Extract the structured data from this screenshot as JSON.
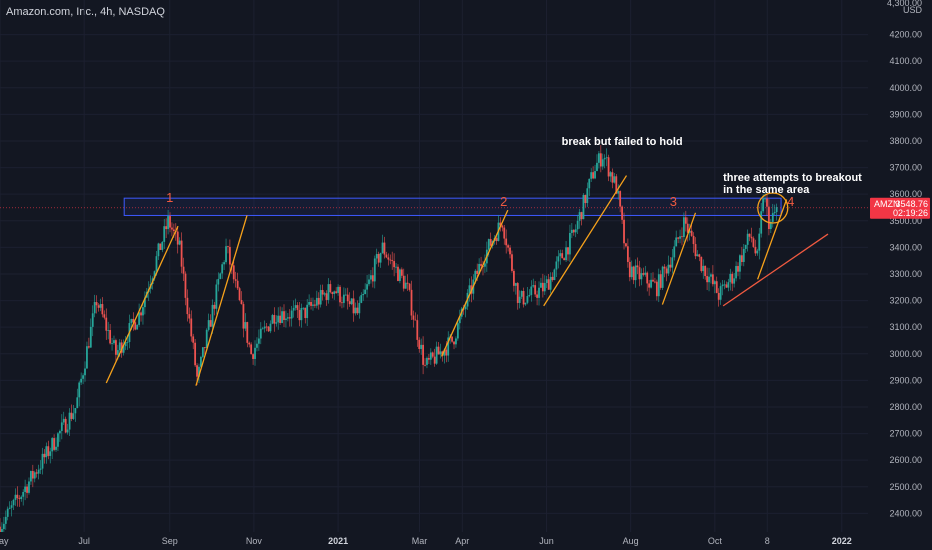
{
  "header": {
    "symbol": "Amazon.com, Inc., 4h, NASDAQ"
  },
  "price_scale": {
    "currency": "USD",
    "top_label": "4,300.00"
  },
  "price_tag": {
    "ticker": "AMZN",
    "price": "3548.76",
    "countdown": "02:19:26",
    "color": "#f23645"
  },
  "colors": {
    "background": "#131722",
    "up": "#26a69a",
    "down": "#ef5350",
    "trendline": "#f7a21b",
    "support": "#f05a40",
    "box": "#3d5afe"
  },
  "chart_data": {
    "type": "candlestick",
    "title": "Amazon.com, Inc., 4h, NASDAQ",
    "ylim": [
      2330,
      4330
    ],
    "y_ticks": [
      2400,
      2500,
      2600,
      2700,
      2800,
      2900,
      3000,
      3100,
      3200,
      3300,
      3400,
      3500,
      3600,
      3700,
      3800,
      3900,
      4000,
      4100,
      4200
    ],
    "y_tick_labels": [
      "2400.00",
      "2500.00",
      "2600.00",
      "2700.00",
      "2800.00",
      "2900.00",
      "3000.00",
      "3100.00",
      "3200.00",
      "3300.00",
      "3400.00",
      "3500.00",
      "3600.00",
      "3700.00",
      "3800.00",
      "3900.00",
      "4000.00",
      "4100.00",
      "4200.00"
    ],
    "x_domain": [
      "2020-05-01",
      "2022-01-20"
    ],
    "x_ticks": [
      {
        "date": "2020-05-01",
        "label": "May",
        "bold": false
      },
      {
        "date": "2020-07-01",
        "label": "Jul",
        "bold": false
      },
      {
        "date": "2020-09-01",
        "label": "Sep",
        "bold": false
      },
      {
        "date": "2020-11-01",
        "label": "Nov",
        "bold": false
      },
      {
        "date": "2021-01-01",
        "label": "2021",
        "bold": true
      },
      {
        "date": "2021-03-01",
        "label": "Mar",
        "bold": false
      },
      {
        "date": "2021-04-01",
        "label": "Apr",
        "bold": false
      },
      {
        "date": "2021-06-01",
        "label": "Jun",
        "bold": false
      },
      {
        "date": "2021-08-01",
        "label": "Aug",
        "bold": false
      },
      {
        "date": "2021-10-01",
        "label": "Oct",
        "bold": false
      },
      {
        "date": "2021-11-08",
        "label": "8",
        "bold": false
      },
      {
        "date": "2022-01-01",
        "label": "2022",
        "bold": true
      }
    ],
    "price_path": [
      {
        "date": "2020-05-01",
        "price": 2350
      },
      {
        "date": "2020-06-01",
        "price": 2600
      },
      {
        "date": "2020-06-25",
        "price": 2800
      },
      {
        "date": "2020-07-10",
        "price": 3200
      },
      {
        "date": "2020-07-24",
        "price": 3000
      },
      {
        "date": "2020-08-10",
        "price": 3150
      },
      {
        "date": "2020-08-31",
        "price": 3500
      },
      {
        "date": "2020-09-08",
        "price": 3400
      },
      {
        "date": "2020-09-21",
        "price": 2900
      },
      {
        "date": "2020-10-12",
        "price": 3400
      },
      {
        "date": "2020-10-30",
        "price": 3000
      },
      {
        "date": "2020-11-16",
        "price": 3150
      },
      {
        "date": "2020-12-07",
        "price": 3150
      },
      {
        "date": "2020-12-28",
        "price": 3250
      },
      {
        "date": "2021-01-15",
        "price": 3150
      },
      {
        "date": "2021-02-02",
        "price": 3400
      },
      {
        "date": "2021-02-20",
        "price": 3250
      },
      {
        "date": "2021-03-05",
        "price": 2950
      },
      {
        "date": "2021-03-25",
        "price": 3050
      },
      {
        "date": "2021-04-15",
        "price": 3350
      },
      {
        "date": "2021-04-30",
        "price": 3500
      },
      {
        "date": "2021-05-12",
        "price": 3200
      },
      {
        "date": "2021-05-31",
        "price": 3250
      },
      {
        "date": "2021-06-21",
        "price": 3450
      },
      {
        "date": "2021-07-06",
        "price": 3700
      },
      {
        "date": "2021-07-12",
        "price": 3750
      },
      {
        "date": "2021-07-22",
        "price": 3620
      },
      {
        "date": "2021-07-30",
        "price": 3320
      },
      {
        "date": "2021-08-20",
        "price": 3250
      },
      {
        "date": "2021-09-01",
        "price": 3380
      },
      {
        "date": "2021-09-09",
        "price": 3500
      },
      {
        "date": "2021-09-20",
        "price": 3350
      },
      {
        "date": "2021-10-04",
        "price": 3220
      },
      {
        "date": "2021-10-15",
        "price": 3300
      },
      {
        "date": "2021-10-27",
        "price": 3450
      },
      {
        "date": "2021-11-01",
        "price": 3350
      },
      {
        "date": "2021-11-05",
        "price": 3600
      },
      {
        "date": "2021-11-10",
        "price": 3480
      },
      {
        "date": "2021-11-15",
        "price": 3548
      }
    ],
    "annotations": {
      "numbers": [
        {
          "label": "1",
          "date": "2020-09-01",
          "price": 3570
        },
        {
          "label": "2",
          "date": "2021-05-01",
          "price": 3555
        },
        {
          "label": "3",
          "date": "2021-09-01",
          "price": 3555
        },
        {
          "label": "4",
          "date": "2021-11-25",
          "price": 3555
        }
      ],
      "texts": [
        {
          "id": "failed",
          "lines": [
            "break but failed to hold"
          ],
          "date": "2021-06-12",
          "price": 3785
        },
        {
          "id": "attempts",
          "lines": [
            "three attempts to breakout",
            "in the same area"
          ],
          "date": "2021-10-07",
          "price": 3650
        }
      ],
      "resistance_zone": {
        "start": "2020-07-30",
        "end": "2021-11-18",
        "top": 3585,
        "bottom": 3520
      },
      "horizontal_line_price": 3548.76,
      "trend_lines": [
        {
          "from": [
            "2020-07-17",
            2890
          ],
          "to": [
            "2020-09-07",
            3480
          ]
        },
        {
          "from": [
            "2020-09-20",
            2880
          ],
          "to": [
            "2020-10-27",
            3520
          ]
        },
        {
          "from": [
            "2021-03-17",
            2990
          ],
          "to": [
            "2021-05-04",
            3540
          ]
        },
        {
          "from": [
            "2021-05-30",
            3180
          ],
          "to": [
            "2021-07-29",
            3670
          ]
        },
        {
          "from": [
            "2021-08-24",
            3185
          ],
          "to": [
            "2021-09-17",
            3530
          ]
        },
        {
          "from": [
            "2021-11-01",
            3280
          ],
          "to": [
            "2021-11-22",
            3580
          ]
        }
      ],
      "support_line": {
        "from": [
          "2021-10-07",
          3180
        ],
        "to": [
          "2021-12-22",
          3450
        ]
      },
      "circle": {
        "date": "2021-11-12",
        "price": 3548
      }
    }
  }
}
